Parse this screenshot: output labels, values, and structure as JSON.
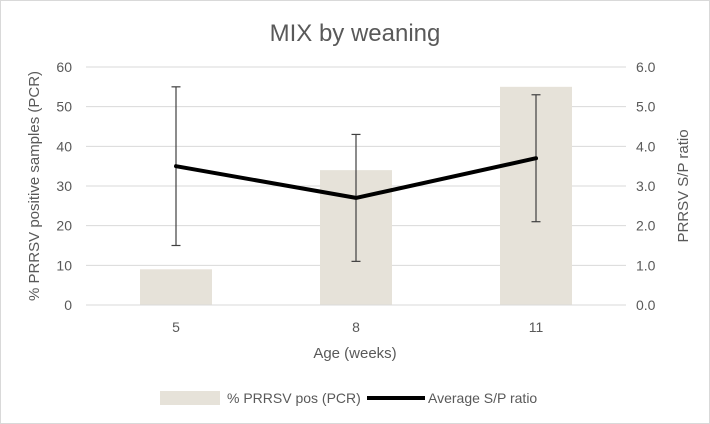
{
  "chart_data": {
    "type": "bar",
    "title": "MIX by weaning",
    "xlabel": "Age (weeks)",
    "ylabel": "% PRRSV positive samples  (PCR)",
    "y2label": "PRRSV S/P ratio",
    "categories": [
      "5",
      "8",
      "11"
    ],
    "ylim": [
      0,
      60
    ],
    "y2lim": [
      0,
      6
    ],
    "yticks": [
      "0",
      "10",
      "20",
      "30",
      "40",
      "50",
      "60"
    ],
    "y2ticks": [
      "0.0",
      "1.0",
      "2.0",
      "3.0",
      "4.0",
      "5.0",
      "6.0"
    ],
    "series": [
      {
        "name": "% PRRSV pos (PCR)",
        "type": "bar",
        "axis": "primary",
        "values": [
          9,
          34,
          55
        ],
        "color": "#e6e2d9"
      },
      {
        "name": "Average S/P ratio",
        "type": "line",
        "axis": "secondary",
        "values": [
          3.5,
          2.7,
          3.7
        ],
        "error_low": [
          1.5,
          1.1,
          2.1
        ],
        "error_high": [
          5.5,
          4.3,
          5.3
        ],
        "color": "#000000"
      }
    ],
    "gridline_color": "#d9d9d9",
    "error_bar_color": "#404040",
    "legend_position": "bottom"
  }
}
